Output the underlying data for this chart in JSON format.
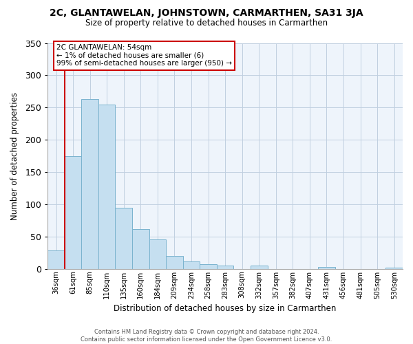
{
  "title": "2C, GLANTAWELAN, JOHNSTOWN, CARMARTHEN, SA31 3JA",
  "subtitle": "Size of property relative to detached houses in Carmarthen",
  "xlabel": "Distribution of detached houses by size in Carmarthen",
  "ylabel": "Number of detached properties",
  "bar_labels": [
    "36sqm",
    "61sqm",
    "85sqm",
    "110sqm",
    "135sqm",
    "160sqm",
    "184sqm",
    "209sqm",
    "234sqm",
    "258sqm",
    "283sqm",
    "308sqm",
    "332sqm",
    "357sqm",
    "382sqm",
    "407sqm",
    "431sqm",
    "456sqm",
    "481sqm",
    "505sqm",
    "530sqm"
  ],
  "bar_values": [
    28,
    175,
    263,
    255,
    95,
    62,
    46,
    20,
    11,
    7,
    5,
    0,
    5,
    0,
    0,
    0,
    3,
    0,
    0,
    0,
    2
  ],
  "bar_color": "#c5dff0",
  "bar_edge_color": "#7ab3ce",
  "plot_bg_color": "#eef4fb",
  "marker_line_color": "#cc0000",
  "annotation_line1": "2C GLANTAWELAN: 54sqm",
  "annotation_line2": "← 1% of detached houses are smaller (6)",
  "annotation_line3": "99% of semi-detached houses are larger (950) →",
  "annotation_box_color": "#ffffff",
  "annotation_box_edge": "#cc0000",
  "ylim": [
    0,
    350
  ],
  "yticks": [
    0,
    50,
    100,
    150,
    200,
    250,
    300,
    350
  ],
  "grid_color": "#c0cfe0",
  "footer1": "Contains HM Land Registry data © Crown copyright and database right 2024.",
  "footer2": "Contains public sector information licensed under the Open Government Licence v3.0."
}
